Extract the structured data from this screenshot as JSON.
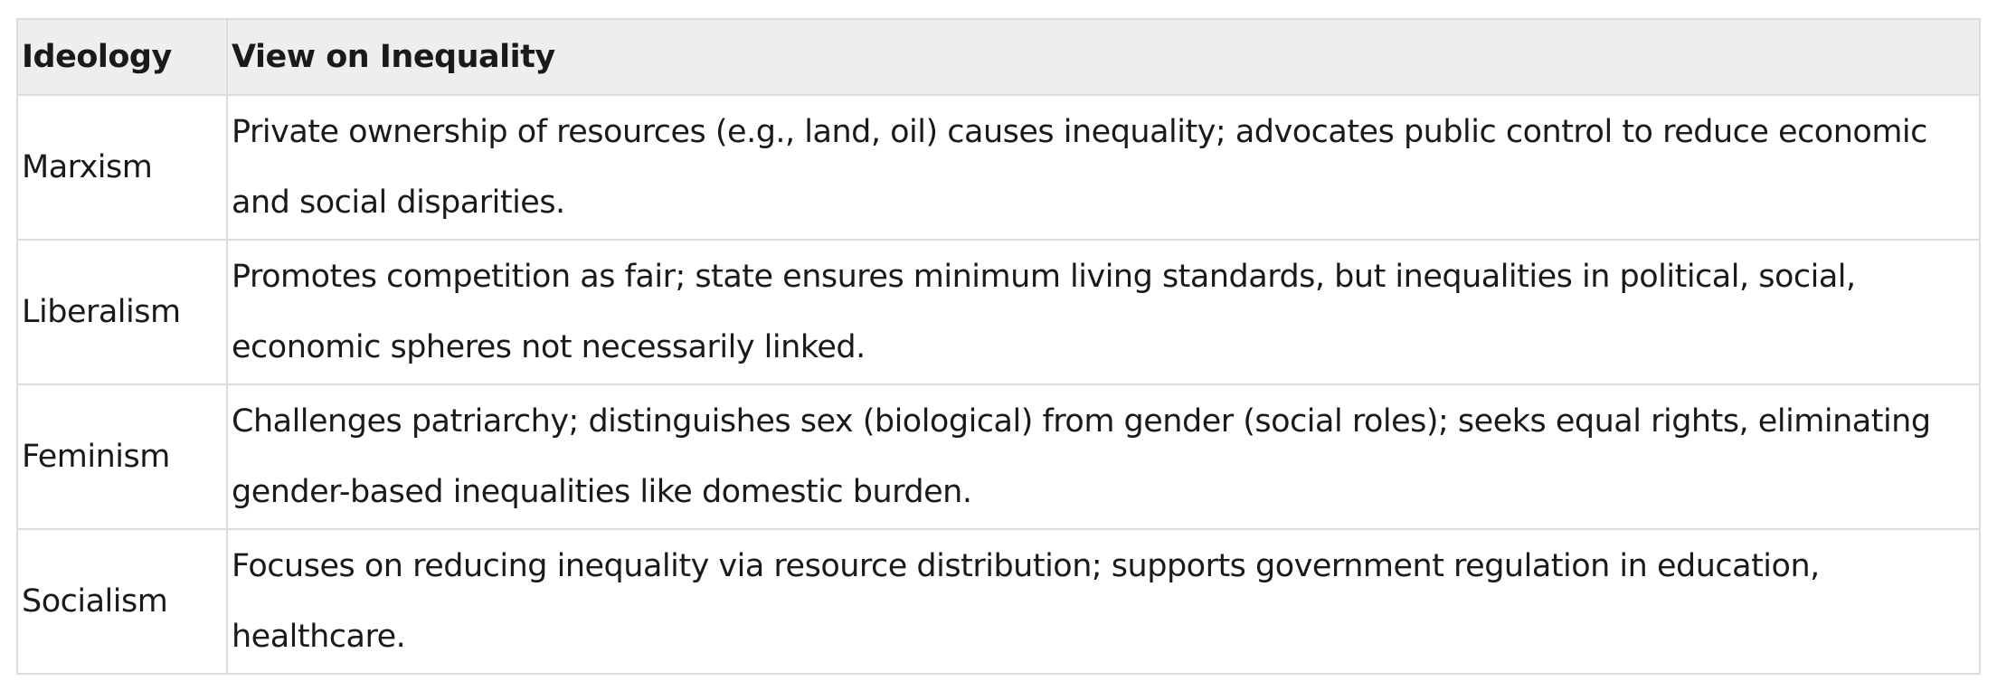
{
  "table": {
    "headers": [
      "Ideology",
      "View on Inequality"
    ],
    "rows": [
      {
        "ideology": "Marxism",
        "view": "Private ownership of resources (e.g., land, oil) causes inequality; advocates public control to reduce economic and social disparities."
      },
      {
        "ideology": "Liberalism",
        "view": "Promotes competition as fair; state ensures minimum living standards, but inequalities in political, social, economic spheres not necessarily linked."
      },
      {
        "ideology": "Feminism",
        "view": "Challenges patriarchy; distinguishes sex (biological) from gender (social roles); seeks equal rights, eliminating gender-based inequalities like domestic burden."
      },
      {
        "ideology": "Socialism",
        "view": "Focuses on reducing inequality via resource distribution; supports government regulation in education, healthcare."
      }
    ]
  }
}
